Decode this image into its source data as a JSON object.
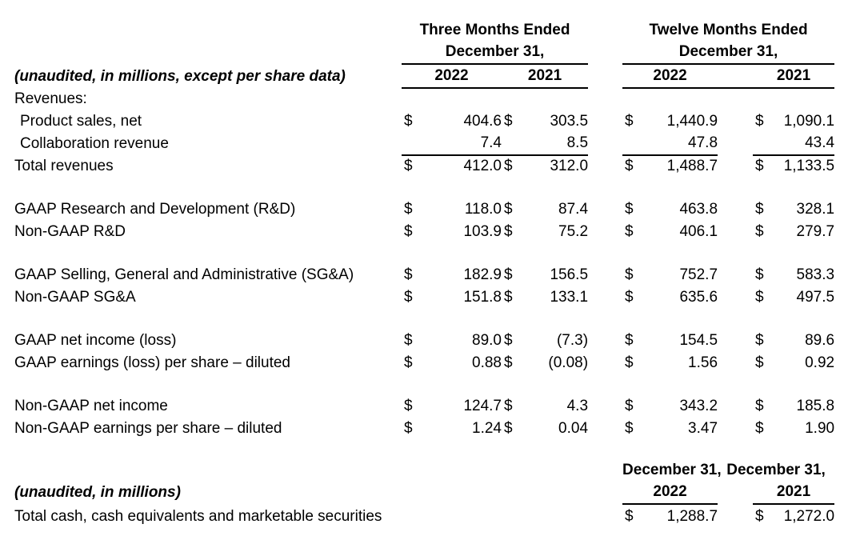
{
  "currency_symbol": "$",
  "header": {
    "note": "(unaudited, in millions, except per share data)",
    "groups": [
      {
        "title": "Three Months Ended",
        "subtitle": "December 31,",
        "years": [
          "2022",
          "2021"
        ]
      },
      {
        "title": "Twelve Months Ended",
        "subtitle": "December 31,",
        "years": [
          "2022",
          "2021"
        ]
      }
    ]
  },
  "rows": [
    {
      "label": "Revenues:",
      "dollars": false,
      "values": [
        "",
        "",
        "",
        ""
      ]
    },
    {
      "label": "Product sales, net",
      "indent": true,
      "dollars": true,
      "values": [
        "404.6",
        "303.5",
        "1,440.9",
        "1,090.1"
      ]
    },
    {
      "label": "Collaboration revenue",
      "indent": true,
      "dollars": false,
      "underline": true,
      "values": [
        "7.4",
        "8.5",
        "47.8",
        "43.4"
      ]
    },
    {
      "label": "Total revenues",
      "dollars": true,
      "values": [
        "412.0",
        "312.0",
        "1,488.7",
        "1,133.5"
      ]
    },
    {
      "spacer": true
    },
    {
      "label": "GAAP Research and Development (R&D)",
      "dollars": true,
      "values": [
        "118.0",
        "87.4",
        "463.8",
        "328.1"
      ]
    },
    {
      "label": "Non-GAAP R&D",
      "dollars": true,
      "values": [
        "103.9",
        "75.2",
        "406.1",
        "279.7"
      ]
    },
    {
      "spacer": true
    },
    {
      "label": "GAAP Selling, General and Administrative (SG&A)",
      "dollars": true,
      "values": [
        "182.9",
        "156.5",
        "752.7",
        "583.3"
      ]
    },
    {
      "label": "Non-GAAP SG&A",
      "dollars": true,
      "values": [
        "151.8",
        "133.1",
        "635.6",
        "497.5"
      ]
    },
    {
      "spacer": true
    },
    {
      "label": "GAAP net income (loss)",
      "dollars": true,
      "values": [
        "89.0",
        "(7.3)",
        "154.5",
        "89.6"
      ]
    },
    {
      "label": "GAAP earnings (loss) per share – diluted",
      "dollars": true,
      "values": [
        "0.88",
        "(0.08)",
        "1.56",
        "0.92"
      ]
    },
    {
      "spacer": true
    },
    {
      "label": "Non-GAAP net income",
      "dollars": true,
      "values": [
        "124.7",
        "4.3",
        "343.2",
        "185.8"
      ]
    },
    {
      "label": "Non-GAAP earnings per share – diluted",
      "dollars": true,
      "values": [
        "1.24",
        "0.04",
        "3.47",
        "1.90"
      ]
    }
  ],
  "cash_section": {
    "note": "(unaudited, in millions)",
    "column_headers": [
      "December 31,",
      "December 31,"
    ],
    "years": [
      "2022",
      "2021"
    ],
    "row": {
      "label": "Total cash, cash equivalents and marketable securities",
      "values": [
        "1,288.7",
        "1,272.0"
      ]
    }
  }
}
